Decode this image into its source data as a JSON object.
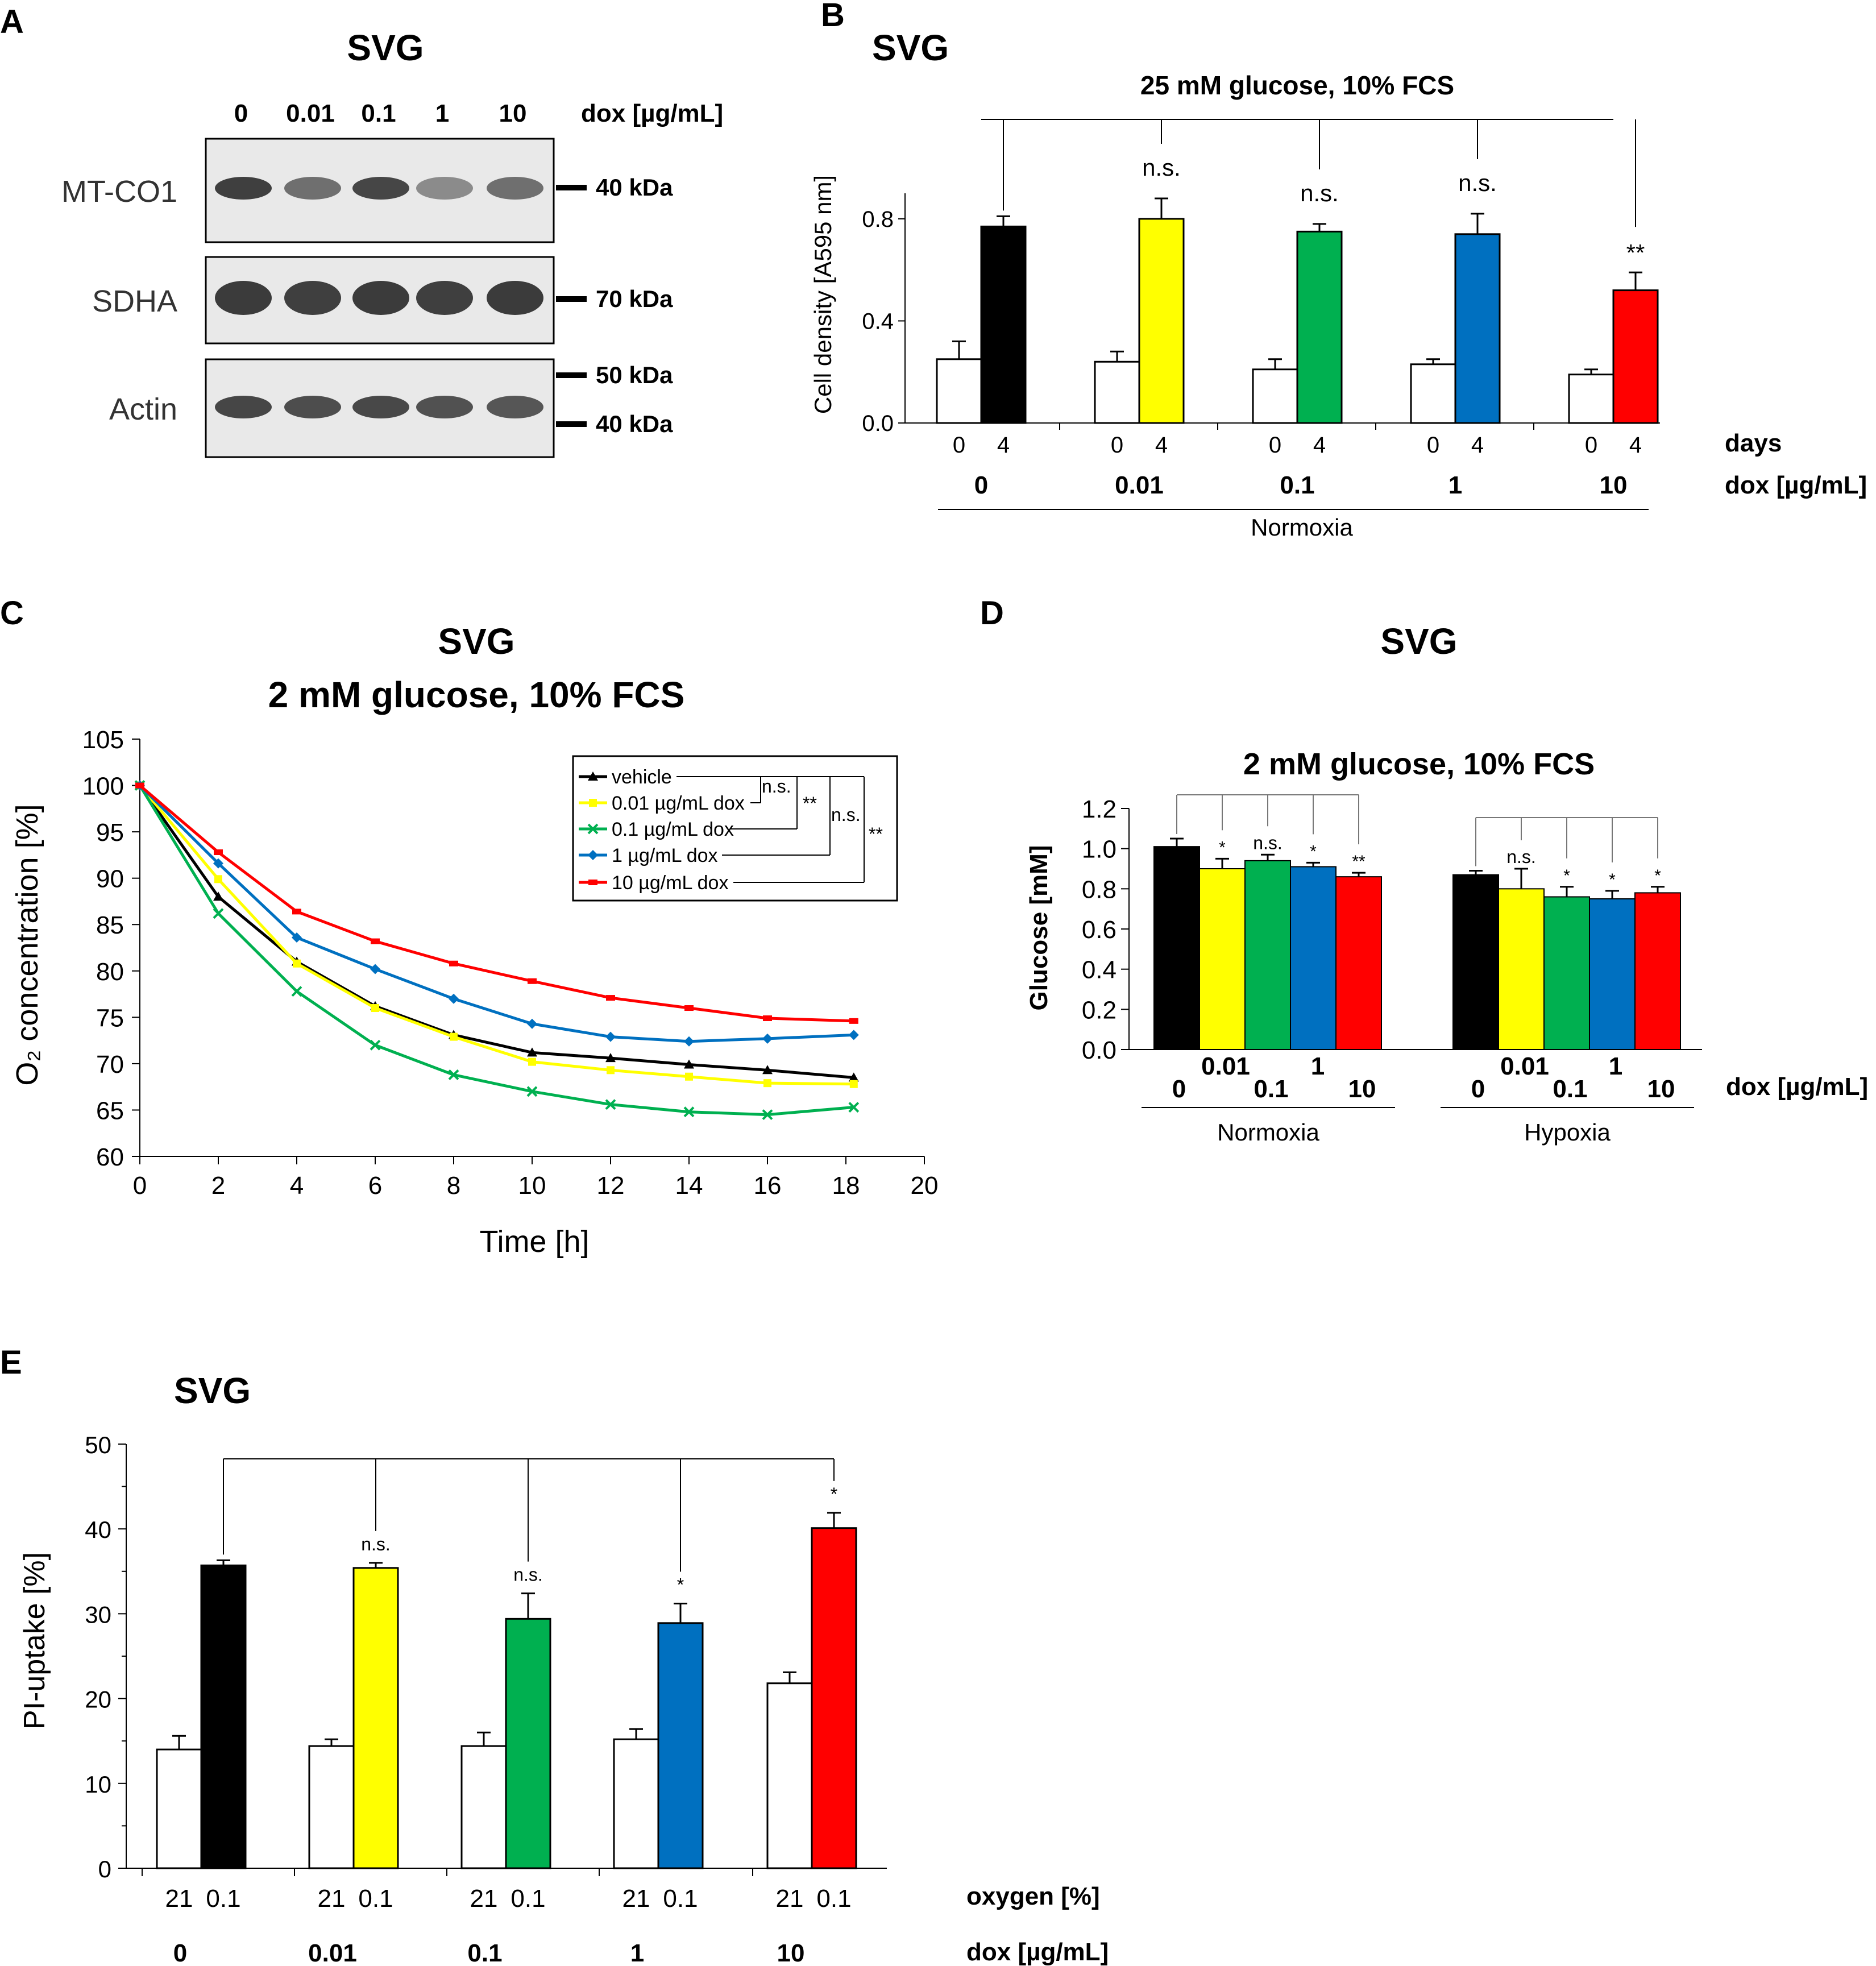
{
  "colors": {
    "black": "#000000",
    "yellow": "#ffff00",
    "green": "#00b050",
    "blue": "#0070c0",
    "red": "#ff0000",
    "white": "#ffffff",
    "blot_bg": "#e9e9e9"
  },
  "panel_a": {
    "letter": "A",
    "title": "SVG",
    "lanes": [
      "0",
      "0.01",
      "0.1",
      "1",
      "10"
    ],
    "lane_unit": "dox [µg/mL]",
    "blots": [
      {
        "name": "MT-CO1",
        "markers": [
          "40 kDa"
        ],
        "band_intensity": [
          0.95,
          0.6,
          0.9,
          0.4,
          0.6
        ]
      },
      {
        "name": "SDHA",
        "markers": [
          "70 kDa"
        ],
        "band_intensity": [
          0.98,
          0.95,
          0.98,
          0.95,
          0.98
        ]
      },
      {
        "name": "Actin",
        "markers": [
          "50 kDa",
          "40 kDa"
        ],
        "band_intensity": [
          0.9,
          0.85,
          0.88,
          0.82,
          0.78
        ]
      }
    ]
  },
  "chart_data": [
    {
      "panel": "B",
      "type": "bar",
      "title": "SVG",
      "subtitle": "25 mM glucose, 10% FCS",
      "xlabel": "",
      "ylabel": "Cell density [A595 nm]",
      "ylim": [
        0,
        0.9
      ],
      "yticks": [
        "0.0",
        "0.4",
        "0.8"
      ],
      "groups": [
        "0",
        "0.01",
        "0.1",
        "1",
        "10"
      ],
      "sub_categories": [
        "0",
        "4"
      ],
      "row_label_days": "days",
      "row_label_dox": "dox [µg/mL]",
      "group_label": "Normoxia",
      "series": [
        {
          "name": "day 0",
          "values": [
            0.25,
            0.24,
            0.21,
            0.23,
            0.19
          ],
          "errors": [
            0.07,
            0.04,
            0.04,
            0.02,
            0.02
          ]
        },
        {
          "name": "day 4",
          "values": [
            0.77,
            0.8,
            0.75,
            0.74,
            0.52
          ],
          "errors": [
            0.04,
            0.08,
            0.03,
            0.08,
            0.07
          ]
        }
      ],
      "significance": [
        "",
        "n.s.",
        "n.s.",
        "n.s.",
        "**"
      ]
    },
    {
      "panel": "C",
      "type": "line",
      "title": "SVG",
      "subtitle": "2 mM glucose, 10% FCS",
      "xlabel": "Time [h]",
      "ylabel": "O₂ concentration [%]",
      "xlim": [
        0,
        20
      ],
      "ylim": [
        60,
        105
      ],
      "xticks": [
        "0",
        "2",
        "4",
        "6",
        "8",
        "10",
        "12",
        "14",
        "16",
        "18",
        "20"
      ],
      "yticks": [
        "60",
        "65",
        "70",
        "75",
        "80",
        "85",
        "90",
        "95",
        "100",
        "105"
      ],
      "x": [
        0,
        2,
        4,
        6,
        8,
        10,
        12,
        14,
        16,
        18.2
      ],
      "series": [
        {
          "name": "vehicle",
          "color": "#000000",
          "marker": "triangle",
          "values": [
            100,
            88,
            81,
            76.2,
            73.1,
            71.2,
            70.6,
            69.9,
            69.3,
            68.5
          ]
        },
        {
          "name": "0.01 µg/mL dox",
          "color": "#ffff00",
          "marker": "square",
          "values": [
            100,
            89.9,
            80.8,
            76,
            72.9,
            70.2,
            69.3,
            68.6,
            67.9,
            67.8
          ]
        },
        {
          "name": "0.1 µg/mL dox",
          "color": "#00b050",
          "marker": "x",
          "values": [
            100,
            86.2,
            77.8,
            72,
            68.8,
            67,
            65.6,
            64.8,
            64.5,
            65.3
          ]
        },
        {
          "name": "1 µg/mL dox",
          "color": "#0070c0",
          "marker": "diamond",
          "values": [
            100,
            91.6,
            83.6,
            80.2,
            77,
            74.3,
            72.9,
            72.4,
            72.7,
            73.1
          ]
        },
        {
          "name": "10 µg/mL dox",
          "color": "#ff0000",
          "marker": "dash",
          "values": [
            100,
            92.8,
            86.4,
            83.2,
            80.8,
            78.9,
            77.1,
            76,
            74.9,
            74.6
          ]
        }
      ],
      "legend_position": "top-right",
      "legend_significance": [
        "n.s.",
        "**",
        "n.s.",
        "**"
      ]
    },
    {
      "panel": "D",
      "type": "bar",
      "title": "SVG",
      "subtitle": "2 mM glucose, 10% FCS",
      "xlabel": "dox [µg/mL]",
      "ylabel": "Glucose [mM]",
      "ylim": [
        0,
        1.2
      ],
      "yticks": [
        "0.0",
        "0.2",
        "0.4",
        "0.6",
        "0.8",
        "1.0",
        "1.2"
      ],
      "categories": [
        "0",
        "0.01",
        "0.1",
        "1",
        "10"
      ],
      "series": [
        {
          "name": "Normoxia",
          "values": [
            1.01,
            0.9,
            0.94,
            0.91,
            0.86
          ],
          "errors": [
            0.04,
            0.05,
            0.03,
            0.02,
            0.02
          ],
          "significance": [
            "",
            "*",
            "n.s.",
            "*",
            "**"
          ]
        },
        {
          "name": "Hypoxia",
          "values": [
            0.87,
            0.8,
            0.76,
            0.75,
            0.78
          ],
          "errors": [
            0.02,
            0.1,
            0.05,
            0.04,
            0.03
          ],
          "significance": [
            "",
            "n.s.",
            "*",
            "*",
            "*"
          ]
        }
      ]
    },
    {
      "panel": "E",
      "type": "bar",
      "title": "SVG",
      "xlabel": "",
      "ylabel": "PI-uptake [%]",
      "ylim": [
        0,
        50
      ],
      "yticks": [
        "0",
        "10",
        "20",
        "30",
        "40",
        "50"
      ],
      "groups": [
        "0",
        "0.01",
        "0.1",
        "1",
        "10"
      ],
      "sub_categories": [
        "21",
        "0.1"
      ],
      "row_label_oxygen": "oxygen [%]",
      "row_label_dox": "dox [µg/mL]",
      "series": [
        {
          "name": "21% oxygen",
          "values": [
            14,
            14.4,
            14.4,
            15.2,
            21.8
          ],
          "errors": [
            1.6,
            0.8,
            1.6,
            1.2,
            1.3
          ]
        },
        {
          "name": "0.1% oxygen",
          "values": [
            35.7,
            35.4,
            29.4,
            28.9,
            40.1
          ],
          "errors": [
            0.6,
            0.6,
            3,
            2.3,
            1.8
          ]
        }
      ],
      "significance": [
        "",
        "n.s.",
        "n.s.",
        "*",
        "*"
      ]
    }
  ]
}
